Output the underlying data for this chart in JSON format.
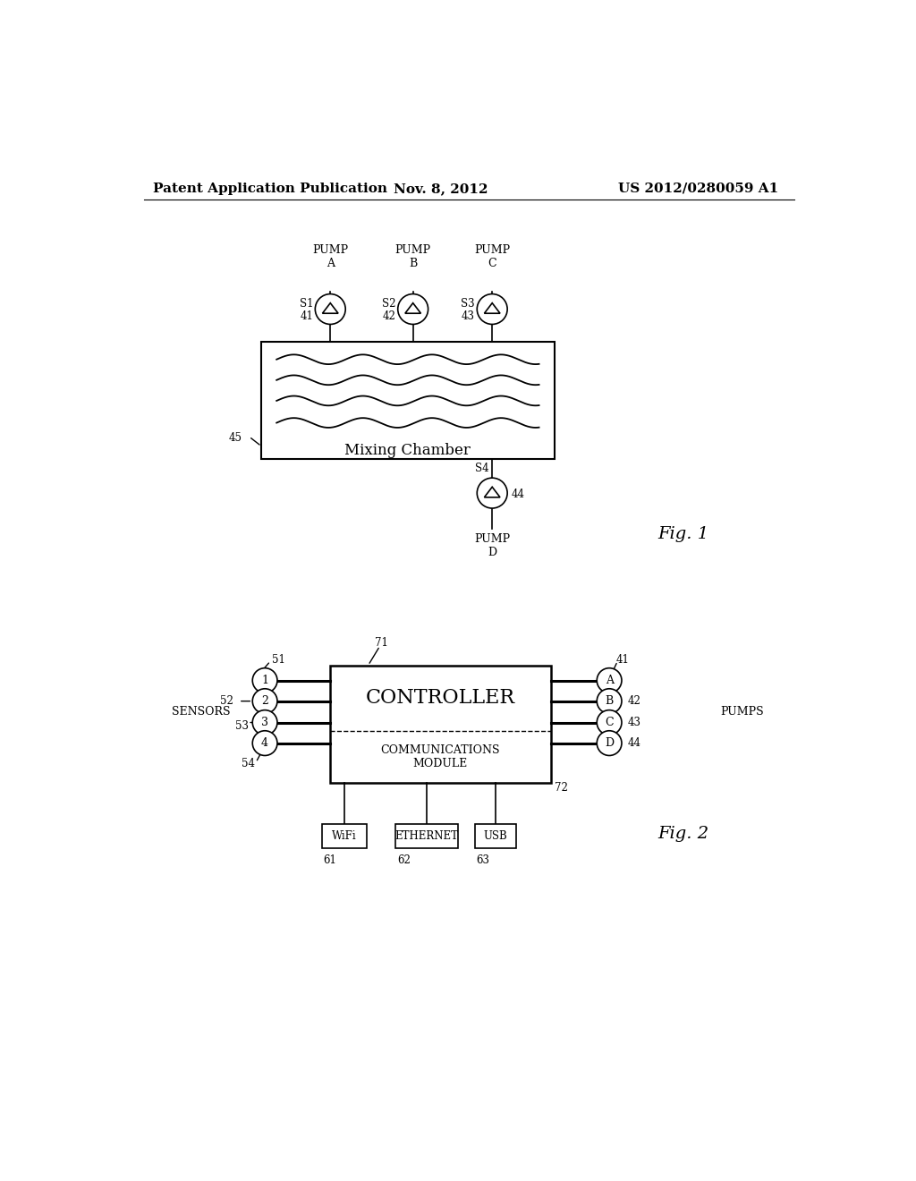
{
  "background_color": "#ffffff",
  "header_left": "Patent Application Publication",
  "header_center": "Nov. 8, 2012",
  "header_right": "US 2012/0280059 A1",
  "header_fontsize": 11,
  "fig1_label": "Fig. 1",
  "fig2_label": "Fig. 2",
  "mixing_chamber_label": "Mixing Chamber",
  "controller_label": "CONTROLLER",
  "comm_module_label": "COMMUNICATIONS\nMODULE",
  "sensors_label": "SENSORS",
  "pumps_label": "PUMPS",
  "sensor_circles": [
    "1",
    "2",
    "3",
    "4"
  ],
  "pump_circles": [
    "A",
    "B",
    "C",
    "D"
  ],
  "wifi_label": "WiFi",
  "ethernet_label": "ETHERNET",
  "usb_label": "USB",
  "wifi_ref": "61",
  "ethernet_ref": "62",
  "usb_ref": "63",
  "controller_ref": "71",
  "comm_ref": "72"
}
